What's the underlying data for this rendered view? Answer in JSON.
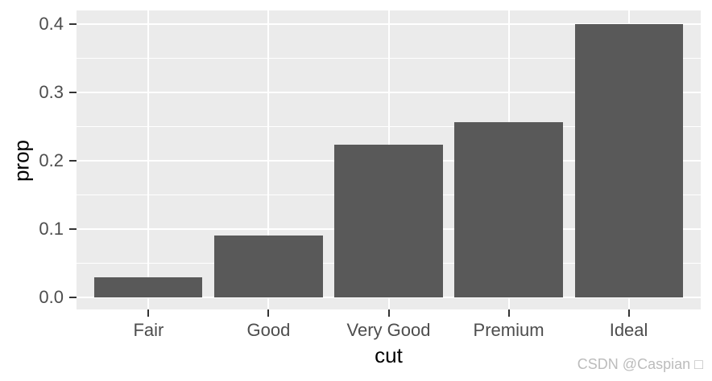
{
  "chart_data": {
    "type": "bar",
    "categories": [
      "Fair",
      "Good",
      "Very Good",
      "Premium",
      "Ideal"
    ],
    "values": [
      0.03,
      0.091,
      0.224,
      0.256,
      0.4
    ],
    "title": "",
    "xlabel": "cut",
    "ylabel": "prop",
    "ylim": [
      0,
      0.42
    ],
    "y_major_ticks": [
      0.0,
      0.1,
      0.2,
      0.3,
      0.4
    ],
    "y_tick_labels": [
      "0.0",
      "0.1",
      "0.2",
      "0.3",
      "0.4"
    ],
    "y_minor_ticks": [
      0.05,
      0.15,
      0.25,
      0.35
    ],
    "legend": "none",
    "grid": "major-and-minor",
    "colors": {
      "bar_fill": "#595959",
      "panel_background": "#EBEBEB",
      "gridline": "#FFFFFF",
      "tick_mark": "#333333",
      "tick_label": "#4D4D4D",
      "axis_title": "#000000",
      "plot_background": "#FFFFFF"
    }
  },
  "watermark": {
    "text": "CSDN @Caspian □",
    "color": "#BCBCBC"
  }
}
